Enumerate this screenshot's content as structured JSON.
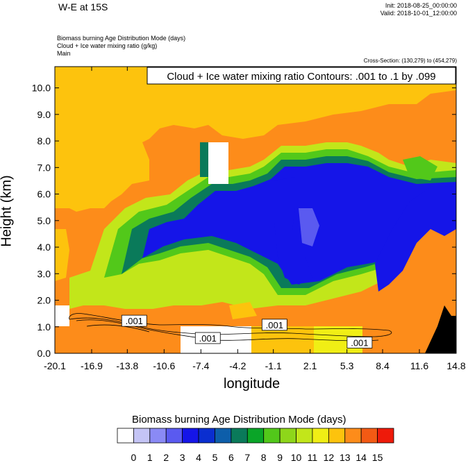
{
  "header": {
    "title": "W-E at 15S",
    "init": "Init: 2018-08-25_00:00:00",
    "valid": "Valid: 2018-10-01_12:00:00",
    "subtitle_lines": [
      "Biomass burning Age Distribution Mode   (days)",
      "Cloud + Ice water mixing ratio   (g/kg)",
      "Main"
    ],
    "cross_section": "Cross-Section: (130,279) to (454,279)"
  },
  "chart_data": {
    "type": "heatmap",
    "title": "W-E at 15S",
    "contour_label": "Cloud + Ice water mixing ratio Contours: .001 to .1 by .099",
    "xlabel": "longitude",
    "ylabel": "Height (km)",
    "xlim": [
      -20.1,
      14.8
    ],
    "ylim": [
      0.0,
      10.8
    ],
    "x_ticks": [
      "-20.1",
      "-16.9",
      "-13.8",
      "-10.6",
      "-7.4",
      "-4.2",
      "-1.1",
      "2.1",
      "5.3",
      "8.4",
      "11.6",
      "14.8"
    ],
    "y_ticks": [
      "0.0",
      "1.0",
      "2.0",
      "3.0",
      "4.0",
      "5.0",
      "6.0",
      "7.0",
      "8.0",
      "9.0",
      "10.0"
    ],
    "colorbar": {
      "title": "Biomass burning Age Distribution Mode  (days)",
      "labels": [
        "0",
        "1",
        "2",
        "3",
        "4",
        "5",
        "6",
        "7",
        "8",
        "9",
        "10",
        "11",
        "12",
        "13",
        "14",
        "15"
      ],
      "colors": [
        "#ffffff",
        "#c4c4f5",
        "#8a8af5",
        "#5a5af0",
        "#1515e8",
        "#0a2ed0",
        "#0d5eaa",
        "#0a7a5a",
        "#0aa528",
        "#52c81a",
        "#8ed61a",
        "#c2e61a",
        "#f0ee15",
        "#fdc30d",
        "#fd8c1a",
        "#f35a14",
        "#ee1a0a"
      ]
    },
    "contour_labels": [
      {
        "text": ".001",
        "lon": -13.2,
        "height": 1.2
      },
      {
        "text": ".001",
        "lon": -6.8,
        "height": 0.55
      },
      {
        "text": ".001",
        "lon": -1.0,
        "height": 1.05
      },
      {
        "text": ".001",
        "lon": 6.4,
        "height": 0.38
      }
    ]
  }
}
